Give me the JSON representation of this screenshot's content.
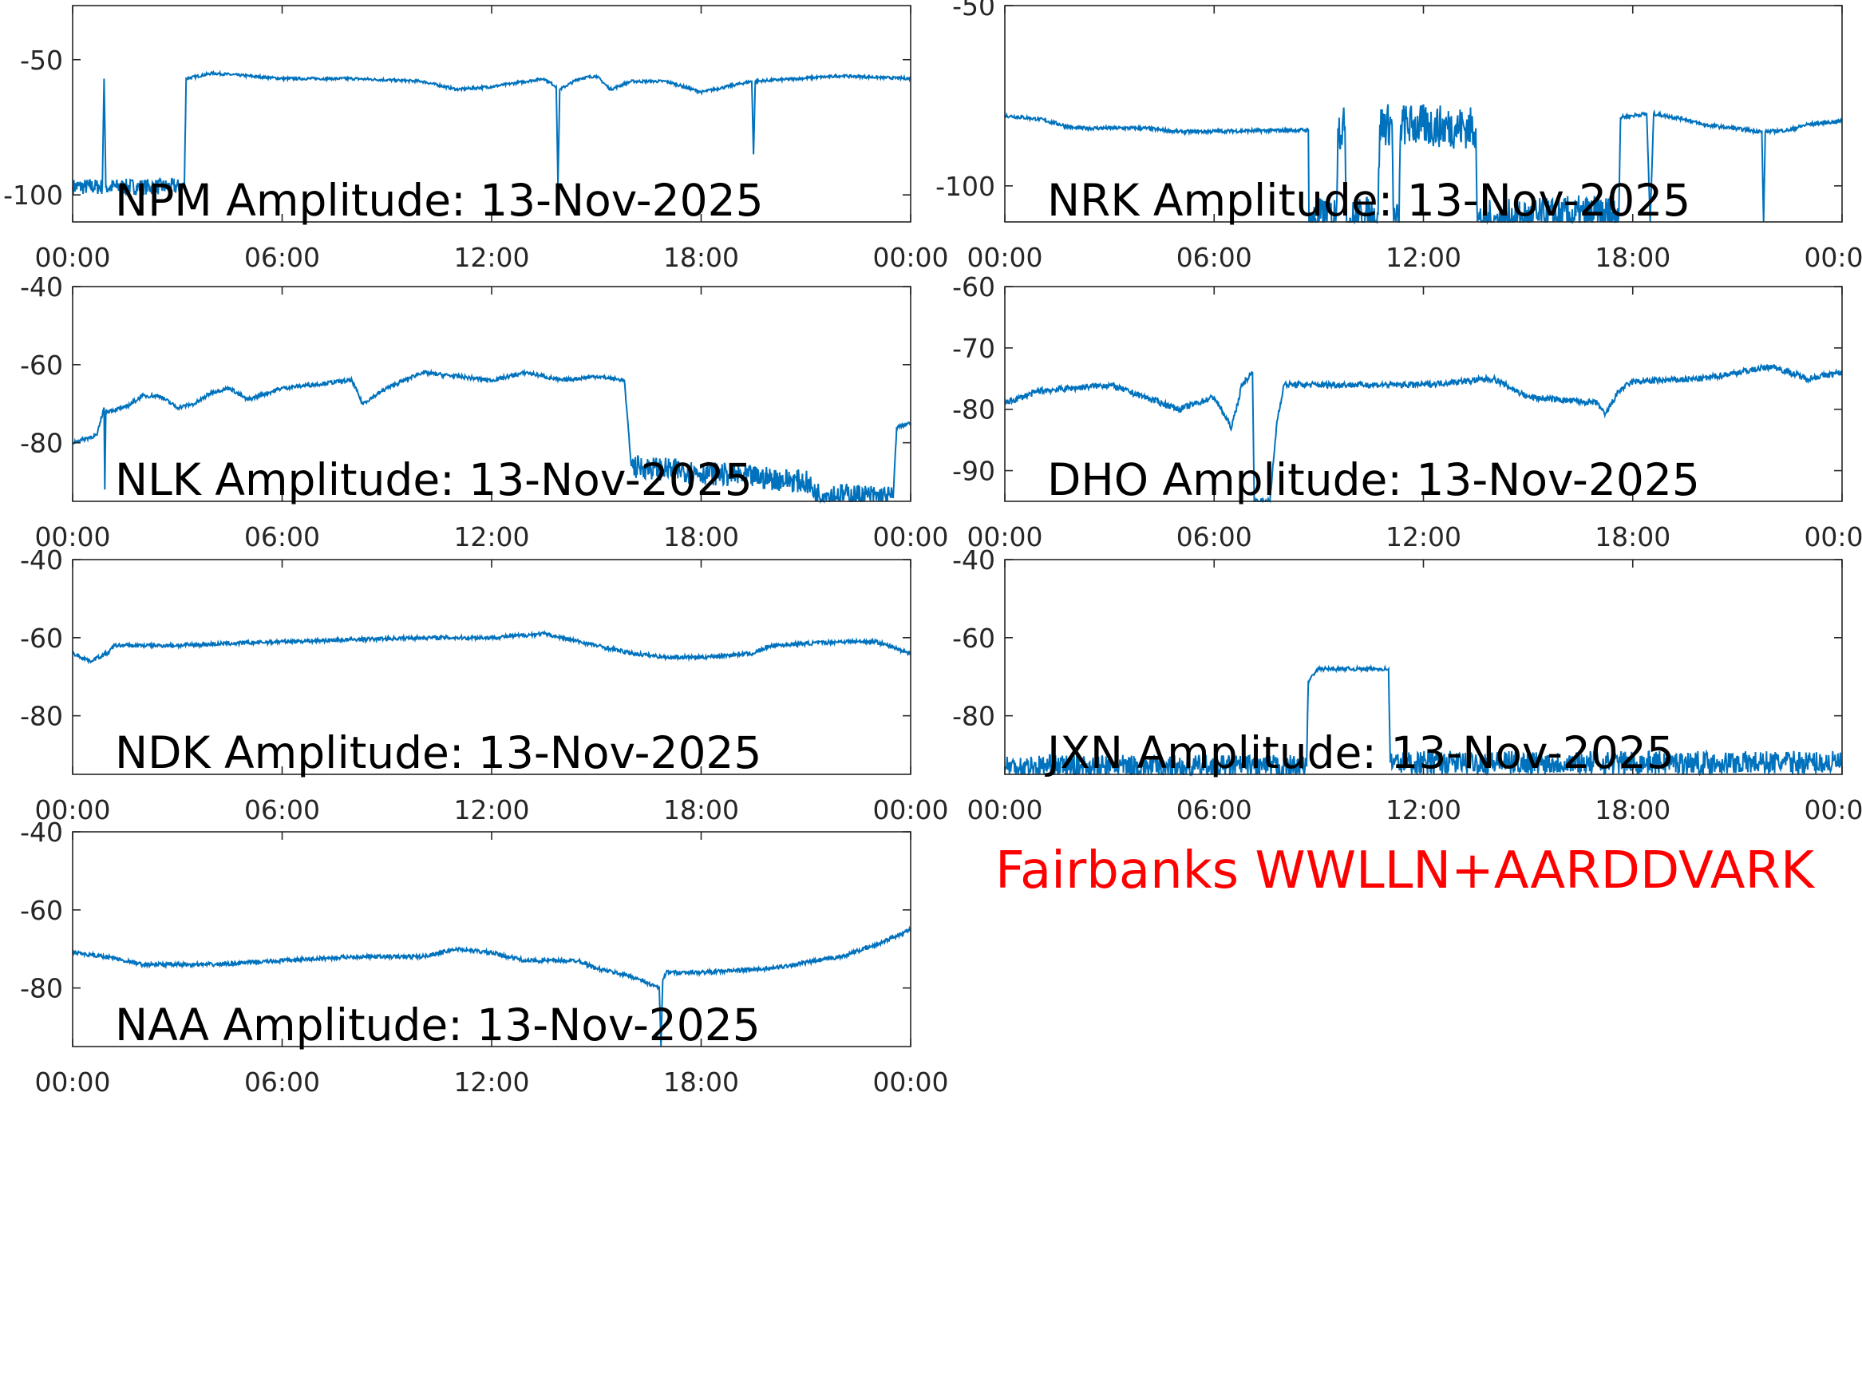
{
  "footer_text": "Fairbanks WWLLN+AARDDVARK",
  "line_color": "#0072bd",
  "chart_data": [
    {
      "type": "line",
      "title": "NPM Amplitude: 13-Nov-2025",
      "xlim": [
        0,
        24
      ],
      "ylim": [
        -110,
        -30
      ],
      "yticks": [
        -50,
        -100
      ],
      "xticks": [
        "00:00",
        "06:00",
        "12:00",
        "18:00",
        "00:00"
      ],
      "x_hours_y_db": [
        [
          0,
          -97
        ],
        [
          0.85,
          -97
        ],
        [
          0.9,
          -57
        ],
        [
          0.95,
          -97
        ],
        [
          3.2,
          -97
        ],
        [
          3.25,
          -57
        ],
        [
          4,
          -55
        ],
        [
          6,
          -57
        ],
        [
          8,
          -57
        ],
        [
          10,
          -58
        ],
        [
          11,
          -61
        ],
        [
          12,
          -60
        ],
        [
          13.5,
          -57
        ],
        [
          13.85,
          -60
        ],
        [
          13.9,
          -96
        ],
        [
          13.95,
          -61
        ],
        [
          14.5,
          -57
        ],
        [
          15,
          -56
        ],
        [
          15.4,
          -61
        ],
        [
          16,
          -58
        ],
        [
          17,
          -58
        ],
        [
          18,
          -62
        ],
        [
          19.45,
          -58
        ],
        [
          19.5,
          -85
        ],
        [
          19.55,
          -58
        ],
        [
          22,
          -56
        ],
        [
          24,
          -57
        ]
      ]
    },
    {
      "type": "line",
      "title": "NRK Amplitude: 13-Nov-2025",
      "xlim": [
        0,
        24
      ],
      "ylim": [
        -110,
        -50
      ],
      "yticks": [
        -50,
        -100
      ],
      "xticks": [
        "00:00",
        "06:00",
        "12:00",
        "18:00",
        "00:00"
      ],
      "x_hours_y_db": [
        [
          0,
          -80.5
        ],
        [
          1,
          -81.5
        ],
        [
          2,
          -84
        ],
        [
          4,
          -84
        ],
        [
          5,
          -85
        ],
        [
          8.7,
          -84.5
        ],
        [
          8.72,
          -110
        ],
        [
          9.5,
          -108
        ],
        [
          9.55,
          -84
        ],
        [
          9.75,
          -84
        ],
        [
          9.8,
          -110
        ],
        [
          10.7,
          -108
        ],
        [
          10.75,
          -83
        ],
        [
          11.1,
          -83
        ],
        [
          11.15,
          -110
        ],
        [
          11.3,
          -110
        ],
        [
          11.35,
          -83
        ],
        [
          13.5,
          -84
        ],
        [
          13.55,
          -110
        ],
        [
          17.6,
          -108
        ],
        [
          17.65,
          -81
        ],
        [
          18.4,
          -80
        ],
        [
          18.5,
          -110
        ],
        [
          18.6,
          -80
        ],
        [
          19.5,
          -81.5
        ],
        [
          20,
          -83
        ],
        [
          21.7,
          -85
        ],
        [
          21.75,
          -110
        ],
        [
          21.8,
          -85
        ],
        [
          22.5,
          -84.5
        ],
        [
          23,
          -83
        ],
        [
          24,
          -82
        ]
      ]
    },
    {
      "type": "line",
      "title": "NLK Amplitude: 13-Nov-2025",
      "xlim": [
        0,
        24
      ],
      "ylim": [
        -95,
        -40
      ],
      "yticks": [
        -40,
        -60,
        -80
      ],
      "xticks": [
        "00:00",
        "06:00",
        "12:00",
        "18:00",
        "00:00"
      ],
      "x_hours_y_db": [
        [
          0,
          -80
        ],
        [
          0.7,
          -78
        ],
        [
          0.9,
          -71
        ],
        [
          0.92,
          -92
        ],
        [
          0.95,
          -72
        ],
        [
          1.5,
          -71
        ],
        [
          2,
          -68
        ],
        [
          2.5,
          -68
        ],
        [
          3,
          -71
        ],
        [
          3.5,
          -70
        ],
        [
          4,
          -67
        ],
        [
          4.5,
          -66
        ],
        [
          5,
          -69
        ],
        [
          6,
          -66
        ],
        [
          8,
          -64
        ],
        [
          8.3,
          -70
        ],
        [
          9,
          -66
        ],
        [
          10,
          -62
        ],
        [
          12,
          -64
        ],
        [
          13,
          -62
        ],
        [
          14,
          -64
        ],
        [
          15,
          -63
        ],
        [
          15.8,
          -64
        ],
        [
          16,
          -86
        ],
        [
          21,
          -90
        ],
        [
          21.3,
          -93
        ],
        [
          23.5,
          -94
        ],
        [
          23.6,
          -76
        ],
        [
          24,
          -75
        ]
      ]
    },
    {
      "type": "line",
      "title": "DHO Amplitude: 13-Nov-2025",
      "xlim": [
        0,
        24
      ],
      "ylim": [
        -95,
        -60
      ],
      "yticks": [
        -60,
        -70,
        -80,
        -90
      ],
      "xticks": [
        "00:00",
        "06:00",
        "12:00",
        "18:00",
        "00:00"
      ],
      "x_hours_y_db": [
        [
          0,
          -79
        ],
        [
          1,
          -77
        ],
        [
          3,
          -76
        ],
        [
          5,
          -80
        ],
        [
          6,
          -78
        ],
        [
          6.5,
          -83
        ],
        [
          6.8,
          -76
        ],
        [
          7.1,
          -74
        ],
        [
          7.15,
          -95
        ],
        [
          7.6,
          -95
        ],
        [
          7.8,
          -82
        ],
        [
          8,
          -76
        ],
        [
          10,
          -76
        ],
        [
          12,
          -76
        ],
        [
          14,
          -75
        ],
        [
          15,
          -78
        ],
        [
          17,
          -79
        ],
        [
          17.2,
          -81
        ],
        [
          17.6,
          -77
        ],
        [
          18,
          -75.5
        ],
        [
          20,
          -75
        ],
        [
          22,
          -73
        ],
        [
          23,
          -75
        ],
        [
          24,
          -74
        ]
      ]
    },
    {
      "type": "line",
      "title": "NDK Amplitude: 13-Nov-2025",
      "xlim": [
        0,
        24
      ],
      "ylim": [
        -95,
        -40
      ],
      "yticks": [
        -40,
        -60,
        -80
      ],
      "xticks": [
        "00:00",
        "06:00",
        "12:00",
        "18:00",
        "00:00"
      ],
      "x_hours_y_db": [
        [
          0,
          -64
        ],
        [
          0.5,
          -66
        ],
        [
          1,
          -64
        ],
        [
          1.2,
          -62
        ],
        [
          3,
          -62
        ],
        [
          6,
          -61
        ],
        [
          10,
          -60
        ],
        [
          12,
          -60
        ],
        [
          13.5,
          -59
        ],
        [
          14,
          -60
        ],
        [
          15,
          -62
        ],
        [
          16,
          -64
        ],
        [
          17,
          -65
        ],
        [
          18,
          -65
        ],
        [
          19.5,
          -64
        ],
        [
          20,
          -62
        ],
        [
          22,
          -61
        ],
        [
          23,
          -61
        ],
        [
          24,
          -64
        ]
      ]
    },
    {
      "type": "line",
      "title": "JXN Amplitude: 13-Nov-2025",
      "xlim": [
        0,
        24
      ],
      "ylim": [
        -95,
        -40
      ],
      "yticks": [
        -40,
        -60,
        -80
      ],
      "xticks": [
        "00:00",
        "06:00",
        "12:00",
        "18:00",
        "00:00"
      ],
      "x_hours_y_db": [
        [
          0,
          -93
        ],
        [
          8.65,
          -93
        ],
        [
          8.7,
          -71
        ],
        [
          9,
          -68
        ],
        [
          11,
          -68
        ],
        [
          11.05,
          -92
        ],
        [
          24,
          -92
        ]
      ]
    },
    {
      "type": "line",
      "title": "NAA Amplitude: 13-Nov-2025",
      "xlim": [
        0,
        24
      ],
      "ylim": [
        -95,
        -40
      ],
      "yticks": [
        -40,
        -60,
        -80
      ],
      "xticks": [
        "00:00",
        "06:00",
        "12:00",
        "18:00",
        "00:00"
      ],
      "x_hours_y_db": [
        [
          0,
          -71
        ],
        [
          1,
          -72
        ],
        [
          2,
          -74
        ],
        [
          4,
          -74
        ],
        [
          6,
          -73
        ],
        [
          8,
          -72
        ],
        [
          10,
          -72
        ],
        [
          11,
          -70
        ],
        [
          12,
          -71
        ],
        [
          13,
          -73
        ],
        [
          14.5,
          -73
        ],
        [
          15,
          -75
        ],
        [
          16,
          -77
        ],
        [
          16.8,
          -80
        ],
        [
          16.85,
          -95
        ],
        [
          16.9,
          -78
        ],
        [
          17,
          -76
        ],
        [
          18,
          -76
        ],
        [
          20,
          -75
        ],
        [
          22,
          -72
        ],
        [
          23,
          -69
        ],
        [
          24,
          -65
        ]
      ]
    }
  ]
}
